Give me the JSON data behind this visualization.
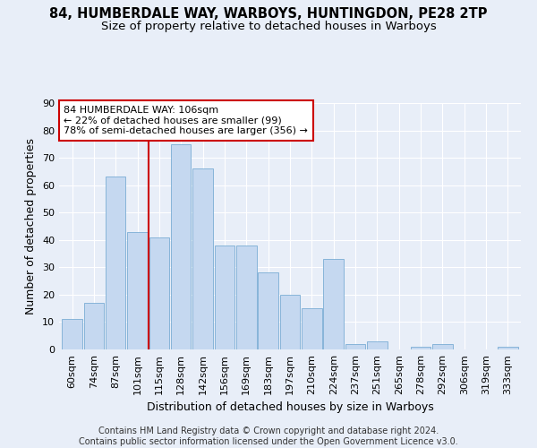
{
  "title_line1": "84, HUMBERDALE WAY, WARBOYS, HUNTINGDON, PE28 2TP",
  "title_line2": "Size of property relative to detached houses in Warboys",
  "xlabel": "Distribution of detached houses by size in Warboys",
  "ylabel": "Number of detached properties",
  "categories": [
    "60sqm",
    "74sqm",
    "87sqm",
    "101sqm",
    "115sqm",
    "128sqm",
    "142sqm",
    "156sqm",
    "169sqm",
    "183sqm",
    "197sqm",
    "210sqm",
    "224sqm",
    "237sqm",
    "251sqm",
    "265sqm",
    "278sqm",
    "292sqm",
    "306sqm",
    "319sqm",
    "333sqm"
  ],
  "values": [
    11,
    17,
    63,
    43,
    41,
    75,
    66,
    38,
    38,
    28,
    20,
    15,
    33,
    2,
    3,
    0,
    1,
    2,
    0,
    0,
    1
  ],
  "bar_color": "#c5d8f0",
  "bar_edge_color": "#7aadd4",
  "vline_x_idx": 3,
  "vline_color": "#cc0000",
  "annotation_text": "84 HUMBERDALE WAY: 106sqm\n← 22% of detached houses are smaller (99)\n78% of semi-detached houses are larger (356) →",
  "annotation_box_color": "#ffffff",
  "annotation_box_edge": "#cc0000",
  "ylim": [
    0,
    90
  ],
  "yticks": [
    0,
    10,
    20,
    30,
    40,
    50,
    60,
    70,
    80,
    90
  ],
  "footer_text": "Contains HM Land Registry data © Crown copyright and database right 2024.\nContains public sector information licensed under the Open Government Licence v3.0.",
  "background_color": "#e8eef8",
  "grid_color": "#ffffff",
  "title_fontsize": 10.5,
  "subtitle_fontsize": 9.5,
  "axis_label_fontsize": 9,
  "tick_fontsize": 8,
  "annotation_fontsize": 8,
  "footer_fontsize": 7
}
